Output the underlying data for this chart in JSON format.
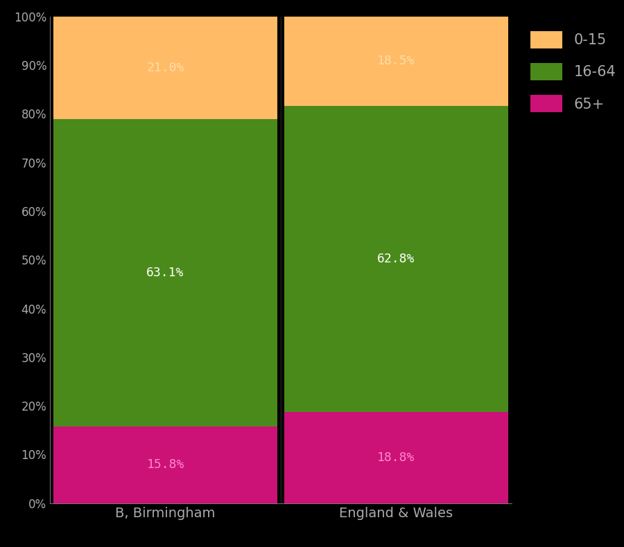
{
  "categories": [
    "B, Birmingham",
    "England & Wales"
  ],
  "segments": {
    "65+": [
      15.8,
      18.8
    ],
    "16-64": [
      63.1,
      62.8
    ],
    "0-15": [
      21.0,
      18.5
    ]
  },
  "colors": {
    "65+": "#CC1177",
    "16-64": "#4A8A1A",
    "0-15": "#FFBB66"
  },
  "label_colors": {
    "65+": "#FF88CC",
    "16-64": "#FFFFFF",
    "0-15": "#FFDDAA"
  },
  "background_color": "#000000",
  "tick_color": "#AAAAAA",
  "legend_text_color": "#AAAAAA",
  "bar_width": 0.97,
  "ylim": [
    0,
    100
  ],
  "yticks": [
    0,
    10,
    20,
    30,
    40,
    50,
    60,
    70,
    80,
    90,
    100
  ],
  "ytick_labels": [
    "0%",
    "10%",
    "20%",
    "30%",
    "40%",
    "50%",
    "60%",
    "70%",
    "80%",
    "90%",
    "100%"
  ],
  "separator_color": "#111111",
  "figsize": [
    9.0,
    7.9
  ],
  "dpi": 100,
  "label_fontsize": 13
}
